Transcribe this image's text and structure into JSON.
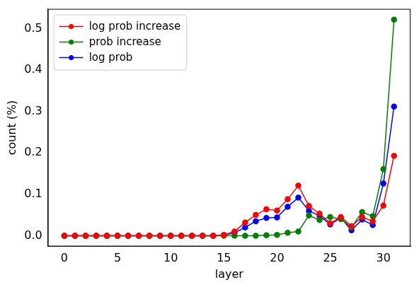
{
  "chart_data": {
    "type": "line",
    "x_label": "layer",
    "y_label": "count (%)",
    "x": [
      0,
      1,
      2,
      3,
      4,
      5,
      6,
      7,
      8,
      9,
      10,
      11,
      12,
      13,
      14,
      15,
      16,
      17,
      18,
      19,
      20,
      21,
      22,
      23,
      24,
      25,
      26,
      27,
      28,
      29,
      30,
      31
    ],
    "series": [
      {
        "name": "log prob increase",
        "color": "#ff0000",
        "marker": "circle",
        "values": [
          0,
          0,
          0,
          0,
          0,
          0,
          0,
          0,
          0,
          0,
          0,
          0,
          0,
          0,
          0,
          0.002,
          0.01,
          0.032,
          0.05,
          0.064,
          0.061,
          0.088,
          0.121,
          0.072,
          0.053,
          0.03,
          0.045,
          0.023,
          0.045,
          0.035,
          0.073,
          0.193
        ]
      },
      {
        "name": "prob increase",
        "color": "#008000",
        "marker": "circle",
        "values": [
          0,
          0,
          0,
          0,
          0,
          0,
          0,
          0,
          0,
          0,
          0,
          0,
          0,
          0,
          0,
          0,
          0,
          0,
          0,
          0.001,
          0.002,
          0.007,
          0.01,
          0.049,
          0.038,
          0.045,
          0.04,
          0.02,
          0.057,
          0.047,
          0.161,
          0.522
        ]
      },
      {
        "name": "log prob",
        "color": "#0000ff",
        "marker": "circle",
        "values": [
          0,
          0,
          0,
          0,
          0,
          0,
          0,
          0,
          0,
          0,
          0,
          0,
          0,
          0,
          0,
          0.001,
          0.007,
          0.02,
          0.035,
          0.043,
          0.044,
          0.07,
          0.092,
          0.06,
          0.048,
          0.027,
          0.043,
          0.013,
          0.039,
          0.026,
          0.126,
          0.312
        ]
      }
    ],
    "xlim": [
      -1.55,
      32.55
    ],
    "xticks": [
      0,
      5,
      10,
      15,
      20,
      25,
      30
    ],
    "ylim": [
      -0.026,
      0.548
    ],
    "yticks": [
      {
        "value": 0,
        "label": "0.0"
      },
      0.1,
      0.2,
      0.3,
      0.4,
      0.5
    ],
    "grid": false,
    "legend": "upper left"
  }
}
